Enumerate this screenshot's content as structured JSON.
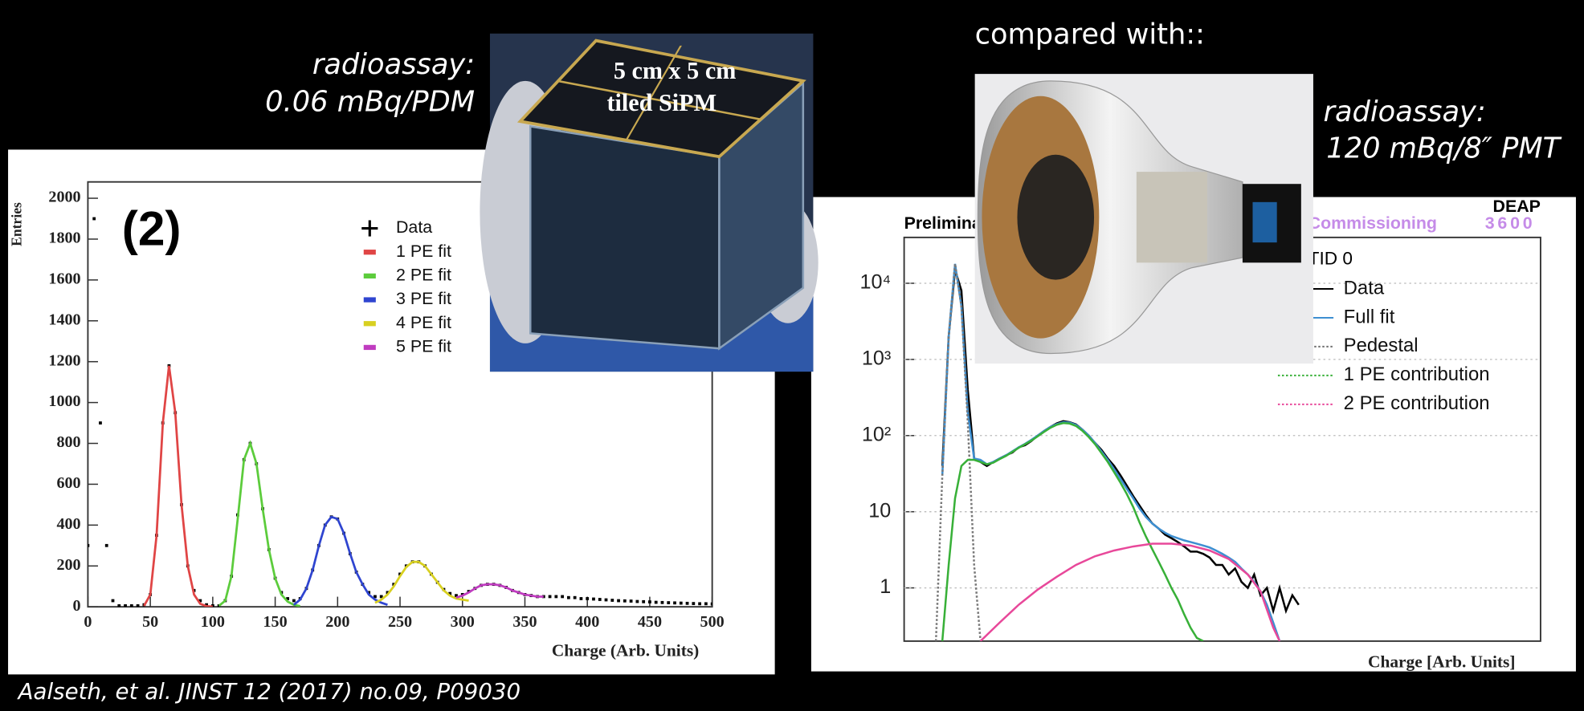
{
  "slide": {
    "left_note": [
      "radioassay:",
      "0.06 mBq/PDM"
    ],
    "right_heading": "compared with::",
    "right_note": [
      "radioassay:",
      "120 mBq/8″ PMT"
    ],
    "photo_caption": [
      "5 cm x 5 cm",
      "tiled SiPM"
    ],
    "citation": "Aalseth, et al. JINST 12 (2017) no.09, P09030"
  },
  "chart_data": [
    {
      "type": "line",
      "ylabel": "Entries",
      "xlabel": "Charge (Arb. Units)",
      "annotations": [
        "(2)"
      ],
      "xlim": [
        0,
        500
      ],
      "ylim": [
        0,
        2080
      ],
      "yscale": "linear",
      "grid": false,
      "legend": "upper right",
      "xticks": [
        0,
        50,
        100,
        150,
        200,
        250,
        300,
        350,
        400,
        450,
        500
      ],
      "yticks": [
        0,
        200,
        400,
        600,
        800,
        1000,
        1200,
        1400,
        1600,
        1800,
        2000
      ],
      "series": [
        {
          "name": "Data",
          "color": "#000000",
          "style": "points",
          "x": [
            0,
            5,
            10,
            15,
            20,
            25,
            30,
            35,
            40,
            45,
            50,
            55,
            60,
            65,
            70,
            75,
            80,
            85,
            90,
            95,
            100,
            105,
            110,
            115,
            120,
            125,
            130,
            135,
            140,
            145,
            150,
            155,
            160,
            165,
            170,
            175,
            180,
            185,
            190,
            195,
            200,
            205,
            210,
            215,
            220,
            225,
            230,
            235,
            240,
            245,
            250,
            255,
            260,
            265,
            270,
            275,
            280,
            285,
            290,
            295,
            300,
            305,
            310,
            315,
            320,
            325,
            330,
            335,
            340,
            345,
            350,
            355,
            360,
            365,
            370,
            375,
            380,
            385,
            390,
            395,
            400,
            405,
            410,
            415,
            420,
            425,
            430,
            435,
            440,
            445,
            450,
            455,
            460,
            465,
            470,
            475,
            480,
            485,
            490,
            495,
            500
          ],
          "values": [
            300,
            1900,
            900,
            300,
            30,
            5,
            5,
            5,
            5,
            10,
            60,
            350,
            900,
            1180,
            950,
            500,
            200,
            80,
            30,
            10,
            5,
            5,
            30,
            150,
            450,
            720,
            800,
            700,
            480,
            280,
            140,
            70,
            40,
            30,
            40,
            90,
            180,
            300,
            400,
            440,
            430,
            360,
            260,
            170,
            110,
            70,
            50,
            50,
            70,
            110,
            160,
            200,
            220,
            220,
            200,
            160,
            120,
            85,
            65,
            55,
            60,
            75,
            90,
            105,
            110,
            110,
            105,
            95,
            80,
            70,
            60,
            55,
            50,
            50,
            50,
            50,
            50,
            45,
            45,
            40,
            40,
            38,
            36,
            34,
            32,
            30,
            29,
            28,
            26,
            25,
            24,
            22,
            21,
            20,
            19,
            18,
            17,
            16,
            15,
            15,
            14
          ]
        },
        {
          "name": "1 PE fit",
          "color": "#e04545",
          "style": "line",
          "x": [
            45,
            50,
            55,
            60,
            65,
            70,
            75,
            80,
            85,
            90,
            95,
            100
          ],
          "values": [
            5,
            60,
            350,
            900,
            1180,
            950,
            500,
            200,
            60,
            15,
            3,
            1
          ]
        },
        {
          "name": "2 PE fit",
          "color": "#5ccc3c",
          "style": "line",
          "x": [
            105,
            110,
            115,
            120,
            125,
            130,
            135,
            140,
            145,
            150,
            155,
            160,
            165,
            170
          ],
          "values": [
            5,
            30,
            150,
            430,
            720,
            800,
            700,
            480,
            280,
            140,
            60,
            25,
            10,
            3
          ]
        },
        {
          "name": "3 PE fit",
          "color": "#2f45d0",
          "style": "line",
          "x": [
            165,
            170,
            175,
            180,
            185,
            190,
            195,
            200,
            205,
            210,
            215,
            220,
            225,
            230,
            235,
            240
          ],
          "values": [
            10,
            35,
            90,
            180,
            300,
            400,
            440,
            430,
            360,
            260,
            170,
            110,
            60,
            35,
            20,
            10
          ]
        },
        {
          "name": "4 PE fit",
          "color": "#d8d020",
          "style": "line",
          "x": [
            230,
            235,
            240,
            245,
            250,
            255,
            260,
            265,
            270,
            275,
            280,
            285,
            290,
            295,
            300,
            305
          ],
          "values": [
            20,
            35,
            60,
            100,
            150,
            195,
            220,
            220,
            200,
            160,
            120,
            80,
            55,
            40,
            35,
            30
          ]
        },
        {
          "name": "5 PE fit",
          "color": "#c03cc0",
          "style": "line",
          "x": [
            295,
            300,
            305,
            310,
            315,
            320,
            325,
            330,
            335,
            340,
            345,
            350,
            355,
            360,
            365
          ],
          "values": [
            45,
            55,
            70,
            90,
            105,
            110,
            110,
            105,
            95,
            80,
            70,
            60,
            55,
            50,
            50
          ]
        }
      ]
    },
    {
      "type": "line",
      "xlabel": "Charge [Arb. Units]",
      "annotations": [
        "Preliminary",
        "Commissioning",
        "3600",
        "DEAP",
        "TID 0"
      ],
      "xlim": [
        0,
        100
      ],
      "ylim": [
        0.2,
        40000
      ],
      "yscale": "log",
      "grid": true,
      "legend": "upper right",
      "yticks": [
        1,
        10,
        {
          "value": 100,
          "label": "10²"
        },
        {
          "value": 1000,
          "label": "10³"
        },
        {
          "value": 10000,
          "label": "10⁴"
        }
      ],
      "series": [
        {
          "name": "Data",
          "color": "#000000",
          "style": "line",
          "x": [
            6,
            7,
            8,
            9,
            10,
            11,
            12,
            13,
            14,
            15,
            16,
            17,
            18,
            19,
            20,
            21,
            22,
            23,
            24,
            25,
            26,
            27,
            28,
            29,
            30,
            31,
            32,
            33,
            34,
            35,
            36,
            37,
            38,
            39,
            40,
            41,
            42,
            43,
            44,
            45,
            46,
            47,
            48,
            49,
            50,
            51,
            52,
            53,
            54,
            55,
            56,
            57,
            58,
            59,
            60,
            61,
            62
          ],
          "values": [
            40,
            2000,
            15000,
            8000,
            400,
            50,
            45,
            40,
            45,
            50,
            55,
            60,
            70,
            75,
            85,
            100,
            115,
            130,
            145,
            155,
            150,
            140,
            120,
            100,
            80,
            65,
            50,
            40,
            30,
            22,
            16,
            12,
            9,
            7,
            6,
            5,
            4.5,
            4,
            3.5,
            3,
            3,
            2.8,
            2.5,
            2,
            2,
            1.5,
            1.8,
            1.2,
            1,
            1.5,
            0.8,
            1,
            0.5,
            1,
            0.5,
            0.8,
            0.6
          ]
        },
        {
          "name": "Full fit",
          "color": "#3d8fd1",
          "style": "line",
          "x": [
            6,
            7,
            8,
            9,
            10,
            11,
            12,
            13,
            14,
            15,
            16,
            17,
            18,
            19,
            20,
            21,
            22,
            23,
            24,
            25,
            26,
            27,
            28,
            29,
            30,
            31,
            32,
            33,
            34,
            35,
            36,
            37,
            38,
            39,
            40,
            41,
            42,
            43,
            44,
            45,
            46,
            47,
            48,
            49,
            50,
            51,
            52,
            53,
            54,
            55,
            56,
            57,
            58,
            59
          ],
          "values": [
            30,
            2000,
            18000,
            5000,
            200,
            50,
            48,
            42,
            45,
            50,
            55,
            62,
            70,
            78,
            88,
            100,
            115,
            130,
            142,
            150,
            148,
            138,
            120,
            100,
            80,
            62,
            48,
            36,
            27,
            20,
            15,
            11,
            8.5,
            7,
            6,
            5.3,
            4.8,
            4.5,
            4.2,
            4,
            3.8,
            3.6,
            3.4,
            3.1,
            2.8,
            2.5,
            2.2,
            1.8,
            1.5,
            1.2,
            0.9,
            0.6,
            0.35,
            0.2
          ]
        },
        {
          "name": "Pedestal",
          "color": "#777777",
          "style": "dotted",
          "x": [
            5,
            6,
            7,
            8,
            9,
            10,
            11,
            12
          ],
          "values": [
            0.2,
            30,
            2000,
            18000,
            5000,
            150,
            2,
            0.2
          ]
        },
        {
          "name": "1 PE contribution",
          "color": "#38b038",
          "style": "dotted",
          "x": [
            6,
            7,
            8,
            9,
            10,
            11,
            12,
            13,
            14,
            15,
            16,
            17,
            18,
            19,
            20,
            21,
            22,
            23,
            24,
            25,
            26,
            27,
            28,
            29,
            30,
            31,
            32,
            33,
            34,
            35,
            36,
            37,
            38,
            39,
            40,
            41,
            42,
            43,
            44,
            45,
            46,
            47
          ],
          "values": [
            0.2,
            2,
            15,
            40,
            48,
            48,
            45,
            42,
            44,
            49,
            54,
            61,
            69,
            77,
            86,
            98,
            112,
            127,
            139,
            146,
            144,
            134,
            116,
            96,
            77,
            59,
            45,
            33,
            24,
            17,
            11.5,
            7.2,
            4.7,
            3.2,
            2.2,
            1.5,
            1,
            0.7,
            0.45,
            0.3,
            0.22,
            0.2
          ]
        },
        {
          "name": "2 PE contribution",
          "color": "#e8489a",
          "style": "dotted",
          "x": [
            12,
            15,
            18,
            21,
            24,
            27,
            30,
            33,
            36,
            39,
            42,
            45,
            48,
            51,
            54,
            56,
            58,
            59
          ],
          "values": [
            0.2,
            0.35,
            0.6,
            0.95,
            1.4,
            2,
            2.6,
            3.1,
            3.5,
            3.8,
            3.8,
            3.6,
            3.1,
            2.4,
            1.5,
            0.9,
            0.3,
            0.2
          ]
        }
      ]
    }
  ]
}
